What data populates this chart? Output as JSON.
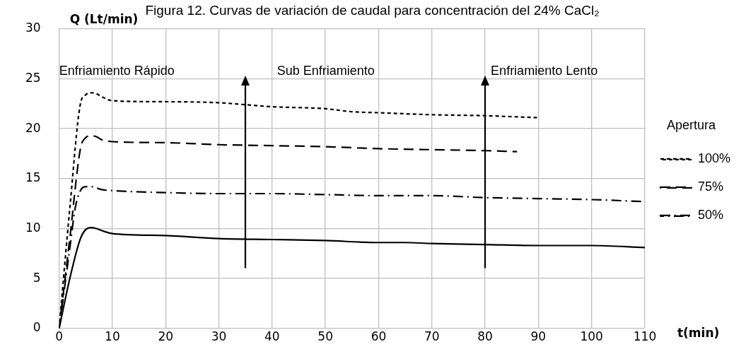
{
  "chart_data": {
    "type": "line",
    "title": "Figura 12. Curvas de variación de caudal para concentración del 24% CaCl₂",
    "xlabel": "t(min)",
    "ylabel": "Q (Lt/min)",
    "legend_title": "Apertura",
    "xlim": [
      0,
      110
    ],
    "xticks": [
      0,
      10,
      20,
      30,
      40,
      50,
      60,
      70,
      80,
      90,
      100,
      110
    ],
    "ylim": [
      0,
      30
    ],
    "yticks": [
      0,
      5,
      10,
      15,
      20,
      25,
      30
    ],
    "grid": true,
    "legend": "right",
    "marker": "none",
    "annotations": [
      "Enfriamiento Rápido",
      "Sub Enfriamiento",
      "Enfriamiento Lento"
    ],
    "series": [
      {
        "name": "100%",
        "color": "#000000",
        "line_style": "dotted",
        "x": [
          0,
          2,
          4,
          5,
          6,
          7,
          8,
          10,
          20,
          30,
          35,
          40,
          50,
          55,
          60,
          70,
          80,
          90
        ],
        "values": [
          0,
          12,
          22.5,
          23.4,
          23.6,
          23.5,
          23.2,
          22.8,
          22.7,
          22.6,
          22.4,
          22.2,
          22.0,
          21.7,
          21.6,
          21.4,
          21.3,
          21.1
        ]
      },
      {
        "name": "75%",
        "color": "#000000",
        "line_style": "dashed",
        "x": [
          0,
          2,
          4,
          5,
          6,
          7,
          8,
          10,
          20,
          30,
          40,
          50,
          60,
          70,
          80,
          86
        ],
        "values": [
          0,
          9,
          18,
          19.1,
          19.3,
          19.2,
          18.9,
          18.7,
          18.6,
          18.4,
          18.3,
          18.2,
          18.0,
          17.9,
          17.8,
          17.7
        ]
      },
      {
        "name": "50%",
        "color": "#000000",
        "line_style": "dashdot",
        "x": [
          0,
          2,
          3,
          4,
          5,
          6,
          8,
          10,
          20,
          30,
          40,
          50,
          60,
          70,
          80,
          90,
          100,
          110
        ],
        "values": [
          0,
          8,
          12,
          13.8,
          14.2,
          14.2,
          13.9,
          13.8,
          13.6,
          13.5,
          13.5,
          13.4,
          13.3,
          13.3,
          13.1,
          13.0,
          12.9,
          12.7
        ]
      },
      {
        "color": "#000000",
        "line_style": "solid",
        "x": [
          0,
          2,
          4,
          5,
          6,
          7,
          8,
          10,
          20,
          30,
          40,
          50,
          60,
          65,
          70,
          80,
          90,
          100,
          110
        ],
        "values": [
          0,
          5,
          9,
          9.9,
          10.1,
          10.0,
          9.8,
          9.5,
          9.3,
          9.0,
          8.9,
          8.8,
          8.6,
          8.6,
          8.5,
          8.4,
          8.3,
          8.3,
          8.1
        ]
      }
    ]
  }
}
